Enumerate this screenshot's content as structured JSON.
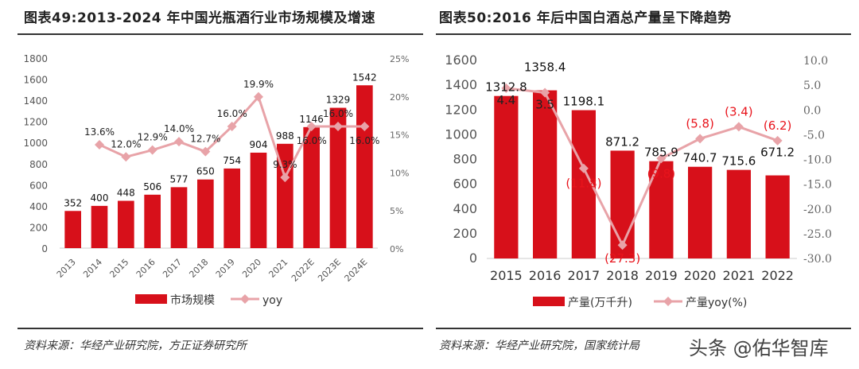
{
  "chart_data": [
    {
      "type": "bar+line",
      "title": "图表49:2013-2024 年中国光瓶酒行业市场规模及增速",
      "categories": [
        "2013",
        "2014",
        "2015",
        "2016",
        "2017",
        "2018",
        "2019",
        "2020",
        "2021",
        "2022E",
        "2023E",
        "2024E"
      ],
      "series": [
        {
          "name": "市场规模",
          "type": "bar",
          "axis": "left",
          "values": [
            352,
            400,
            448,
            506,
            577,
            650,
            754,
            904,
            988,
            1146,
            1329,
            1542
          ],
          "labels": [
            "352",
            "400",
            "448",
            "506",
            "577",
            "650",
            "754",
            "904",
            "988",
            "1146",
            "1329",
            "1542"
          ]
        },
        {
          "name": "yoy",
          "type": "line",
          "axis": "right",
          "values": [
            null,
            13.6,
            12.0,
            12.9,
            14.0,
            12.7,
            16.0,
            19.9,
            9.3,
            16.0,
            16.0,
            16.0
          ],
          "labels": [
            "",
            "13.6%",
            "12.0%",
            "12.9%",
            "14.0%",
            "12.7%",
            "16.0%",
            "19.9%",
            "9.3%",
            "16.0%",
            "16.0%",
            "16.0%"
          ]
        }
      ],
      "ylim": [
        0,
        1800
      ],
      "yticks": [
        "0",
        "200",
        "400",
        "600",
        "800",
        "1000",
        "1200",
        "1400",
        "1600",
        "1800"
      ],
      "y2lim": [
        0,
        25
      ],
      "y2ticks": [
        "0%",
        "5%",
        "10%",
        "15%",
        "20%",
        "25%"
      ],
      "legend": "bottom",
      "source": "资料来源：华经产业研究院，方正证券研究所"
    },
    {
      "type": "bar+line",
      "title": "图表50:2016 年后中国白酒总产量呈下降趋势",
      "categories": [
        "2015",
        "2016",
        "2017",
        "2018",
        "2019",
        "2020",
        "2021",
        "2022"
      ],
      "series": [
        {
          "name": "产量(万千升)",
          "type": "bar",
          "axis": "left",
          "values": [
            1312.8,
            1358.4,
            1198.1,
            871.2,
            785.9,
            740.7,
            715.6,
            671.2
          ],
          "labels": [
            "1312.8",
            "1358.4",
            "1198.1",
            "871.2",
            "785.9",
            "740.7",
            "715.6",
            "671.2"
          ]
        },
        {
          "name": "产量yoy(%)",
          "type": "line",
          "axis": "right",
          "values": [
            4.4,
            3.5,
            -11.8,
            -27.3,
            -9.8,
            -5.8,
            -3.4,
            -6.2
          ],
          "labels": [
            "4.4",
            "3.5",
            "(11.8)",
            "(27.3)",
            "(9.8)",
            "(5.8)",
            "(3.4)",
            "(6.2)"
          ]
        }
      ],
      "ylim": [
        0,
        1600
      ],
      "yticks": [
        "0",
        "200",
        "400",
        "600",
        "800",
        "1000",
        "1200",
        "1400",
        "1600"
      ],
      "y2lim": [
        -30,
        10
      ],
      "y2ticks": [
        "-30.0",
        "-25.0",
        "-20.0",
        "-15.0",
        "-10.0",
        "-5.0",
        "0.0",
        "5.0",
        "10.0"
      ],
      "legend": "bottom",
      "source": "资料来源：华经产业研究院，国家统计局"
    }
  ],
  "colors": {
    "bar": "#d7101a",
    "line": "#e8a3a8",
    "neg_label": "#e8141c"
  },
  "watermark": "头条 @佑华智库"
}
